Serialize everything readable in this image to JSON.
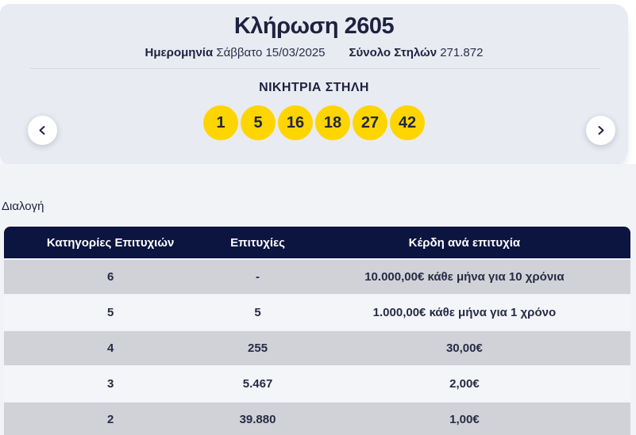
{
  "draw": {
    "title": "Κλήρωση 2605",
    "date_label": "Ημερομηνία",
    "date_value": "Σάββατο 15/03/2025",
    "columns_label": "Σύνολο Στηλών",
    "columns_value": "271.872",
    "winning_title": "ΝΙΚΗΤΡΙΑ ΣΤΗΛΗ",
    "numbers": [
      "1",
      "5",
      "16",
      "18",
      "27",
      "42"
    ]
  },
  "nav": {
    "prev_icon": "chevron-left",
    "next_icon": "chevron-right"
  },
  "results": {
    "section_label": "Διαλογή",
    "table": {
      "headers": [
        "Κατηγορίες Επιτυχιών",
        "Επιτυχίες",
        "Κέρδη ανά επιτυχία"
      ],
      "rows": [
        [
          "6",
          "-",
          "10.000,00€ κάθε μήνα για 10 χρόνια"
        ],
        [
          "5",
          "5",
          "1.000,00€ κάθε μήνα για 1 χρόνο"
        ],
        [
          "4",
          "255",
          "30,00€"
        ],
        [
          "3",
          "5.467",
          "2,00€"
        ],
        [
          "2",
          "39.880",
          "1,00€"
        ]
      ]
    }
  },
  "colors": {
    "ball_yellow": "#FFD500",
    "header_navy": "#0C1440",
    "row_gray": "#D0D2D7",
    "row_light": "#F4F5F8",
    "card_bg": "#E9EBF2",
    "text_navy": "#1E2240"
  }
}
